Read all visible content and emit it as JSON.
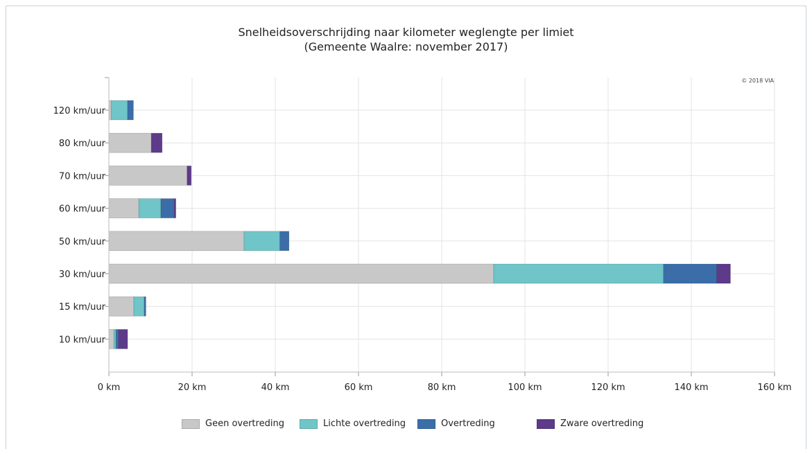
{
  "chart_data": {
    "type": "bar",
    "orientation": "horizontal",
    "stacked": true,
    "title": "Snelheidsoverschrijding naar kilometer weglengte per limiet",
    "subtitle": "(Gemeente Waalre: november 2017)",
    "credit": "© 2018 VIA",
    "categories": [
      "120 km/uur",
      "80 km/uur",
      "70 km/uur",
      "60 km/uur",
      "50 km/uur",
      "30 km/uur",
      "15 km/uur",
      "10 km/uur"
    ],
    "xlim": [
      0,
      160
    ],
    "xticks": [
      {
        "value": 0,
        "label": "0 km"
      },
      {
        "value": 20,
        "label": "20 km"
      },
      {
        "value": 40,
        "label": "40 km"
      },
      {
        "value": 60,
        "label": "60 km"
      },
      {
        "value": 80,
        "label": "80 km"
      },
      {
        "value": 100,
        "label": "100 km"
      },
      {
        "value": 120,
        "label": "120 km"
      },
      {
        "value": 140,
        "label": "140 km"
      },
      {
        "value": 160,
        "label": "160 km"
      }
    ],
    "grid": true,
    "legend_position": "bottom",
    "series": [
      {
        "name": "Geen overtreding",
        "color": "#c8c8c8",
        "values": [
          0.6,
          10.2,
          18.8,
          7.2,
          32.5,
          92.5,
          6.0,
          1.2
        ]
      },
      {
        "name": "Lichte overtreding",
        "color": "#6fc5c8",
        "values": [
          3.9,
          0.0,
          0.0,
          5.3,
          8.6,
          40.8,
          2.5,
          0.5
        ]
      },
      {
        "name": "Overtreding",
        "color": "#3b6ea8",
        "values": [
          1.4,
          0.0,
          0.0,
          3.2,
          2.2,
          12.8,
          0.4,
          0.6
        ]
      },
      {
        "name": "Zware overtreding",
        "color": "#5e3a8a",
        "values": [
          0.0,
          2.6,
          1.0,
          0.4,
          0.0,
          3.3,
          0.0,
          2.2
        ]
      }
    ]
  }
}
